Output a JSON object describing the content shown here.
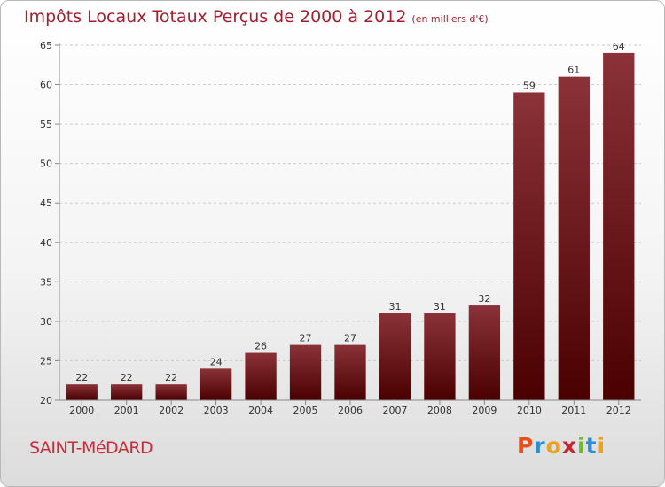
{
  "header": {
    "title": "Impôts Locaux Totaux Perçus de 2000 à 2012",
    "unit": "(en milliers d'€)"
  },
  "commune": "SAINT-MéDARD",
  "logo": {
    "text": "Proxiti",
    "letters": [
      "P",
      "r",
      "o",
      "x",
      "i",
      "t",
      "i"
    ],
    "colors": [
      "#e8501a",
      "#2a8ed6",
      "#f0a11a",
      "#c4262e",
      "#6dbb2c",
      "#2a8ed6",
      "#f0a11a"
    ]
  },
  "colors": {
    "bar_top": "#8a3238",
    "bar_bottom": "#4a0000",
    "title": "#a41e2c",
    "grid": "#cccccc"
  },
  "chart_data": {
    "type": "bar",
    "title": "Impôts Locaux Totaux Perçus de 2000 à 2012",
    "xlabel": "",
    "ylabel": "",
    "categories": [
      "2000",
      "2001",
      "2002",
      "2003",
      "2004",
      "2005",
      "2006",
      "2007",
      "2008",
      "2009",
      "2010",
      "2011",
      "2012"
    ],
    "values": [
      22,
      22,
      22,
      24,
      26,
      27,
      27,
      31,
      31,
      32,
      59,
      61,
      64
    ],
    "ylim": [
      20,
      65
    ],
    "yticks": [
      20,
      25,
      30,
      35,
      40,
      45,
      50,
      55,
      60,
      65
    ],
    "grid": "dashed-horizontal",
    "data_labels": true
  }
}
